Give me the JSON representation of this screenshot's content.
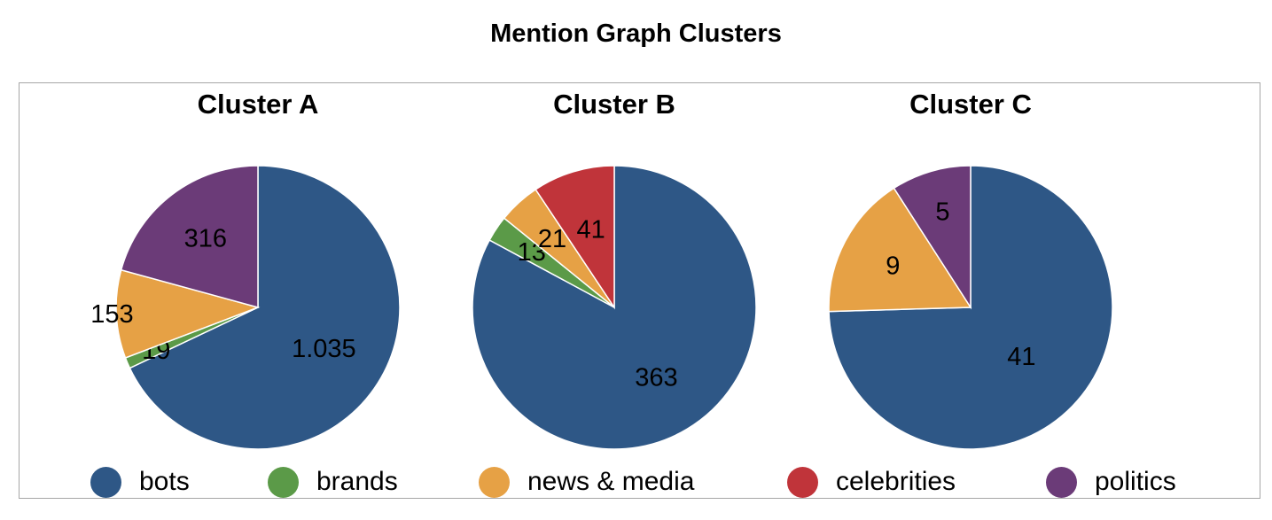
{
  "title": "Mention Graph Clusters",
  "colors": {
    "bots": "#2e5786",
    "brands": "#5b9a48",
    "news & media": "#e6a145",
    "celebrities": "#c0343a",
    "politics": "#6b3b78"
  },
  "legend": [
    "bots",
    "brands",
    "news & media",
    "celebrities",
    "politics"
  ],
  "chart_data": [
    {
      "type": "pie",
      "title": "Cluster A",
      "slices": [
        {
          "category": "bots",
          "value": 1035,
          "label": "1.035"
        },
        {
          "category": "brands",
          "value": 19,
          "label": "19"
        },
        {
          "category": "news & media",
          "value": 153,
          "label": "153"
        },
        {
          "category": "politics",
          "value": 316,
          "label": "316"
        }
      ]
    },
    {
      "type": "pie",
      "title": "Cluster B",
      "slices": [
        {
          "category": "bots",
          "value": 363,
          "label": "363"
        },
        {
          "category": "brands",
          "value": 13,
          "label": "13"
        },
        {
          "category": "news & media",
          "value": 21,
          "label": "21"
        },
        {
          "category": "celebrities",
          "value": 41,
          "label": "41"
        }
      ]
    },
    {
      "type": "pie",
      "title": "Cluster C",
      "slices": [
        {
          "category": "bots",
          "value": 41,
          "label": "41"
        },
        {
          "category": "news & media",
          "value": 9,
          "label": "9"
        },
        {
          "category": "politics",
          "value": 5,
          "label": "5"
        }
      ]
    }
  ]
}
